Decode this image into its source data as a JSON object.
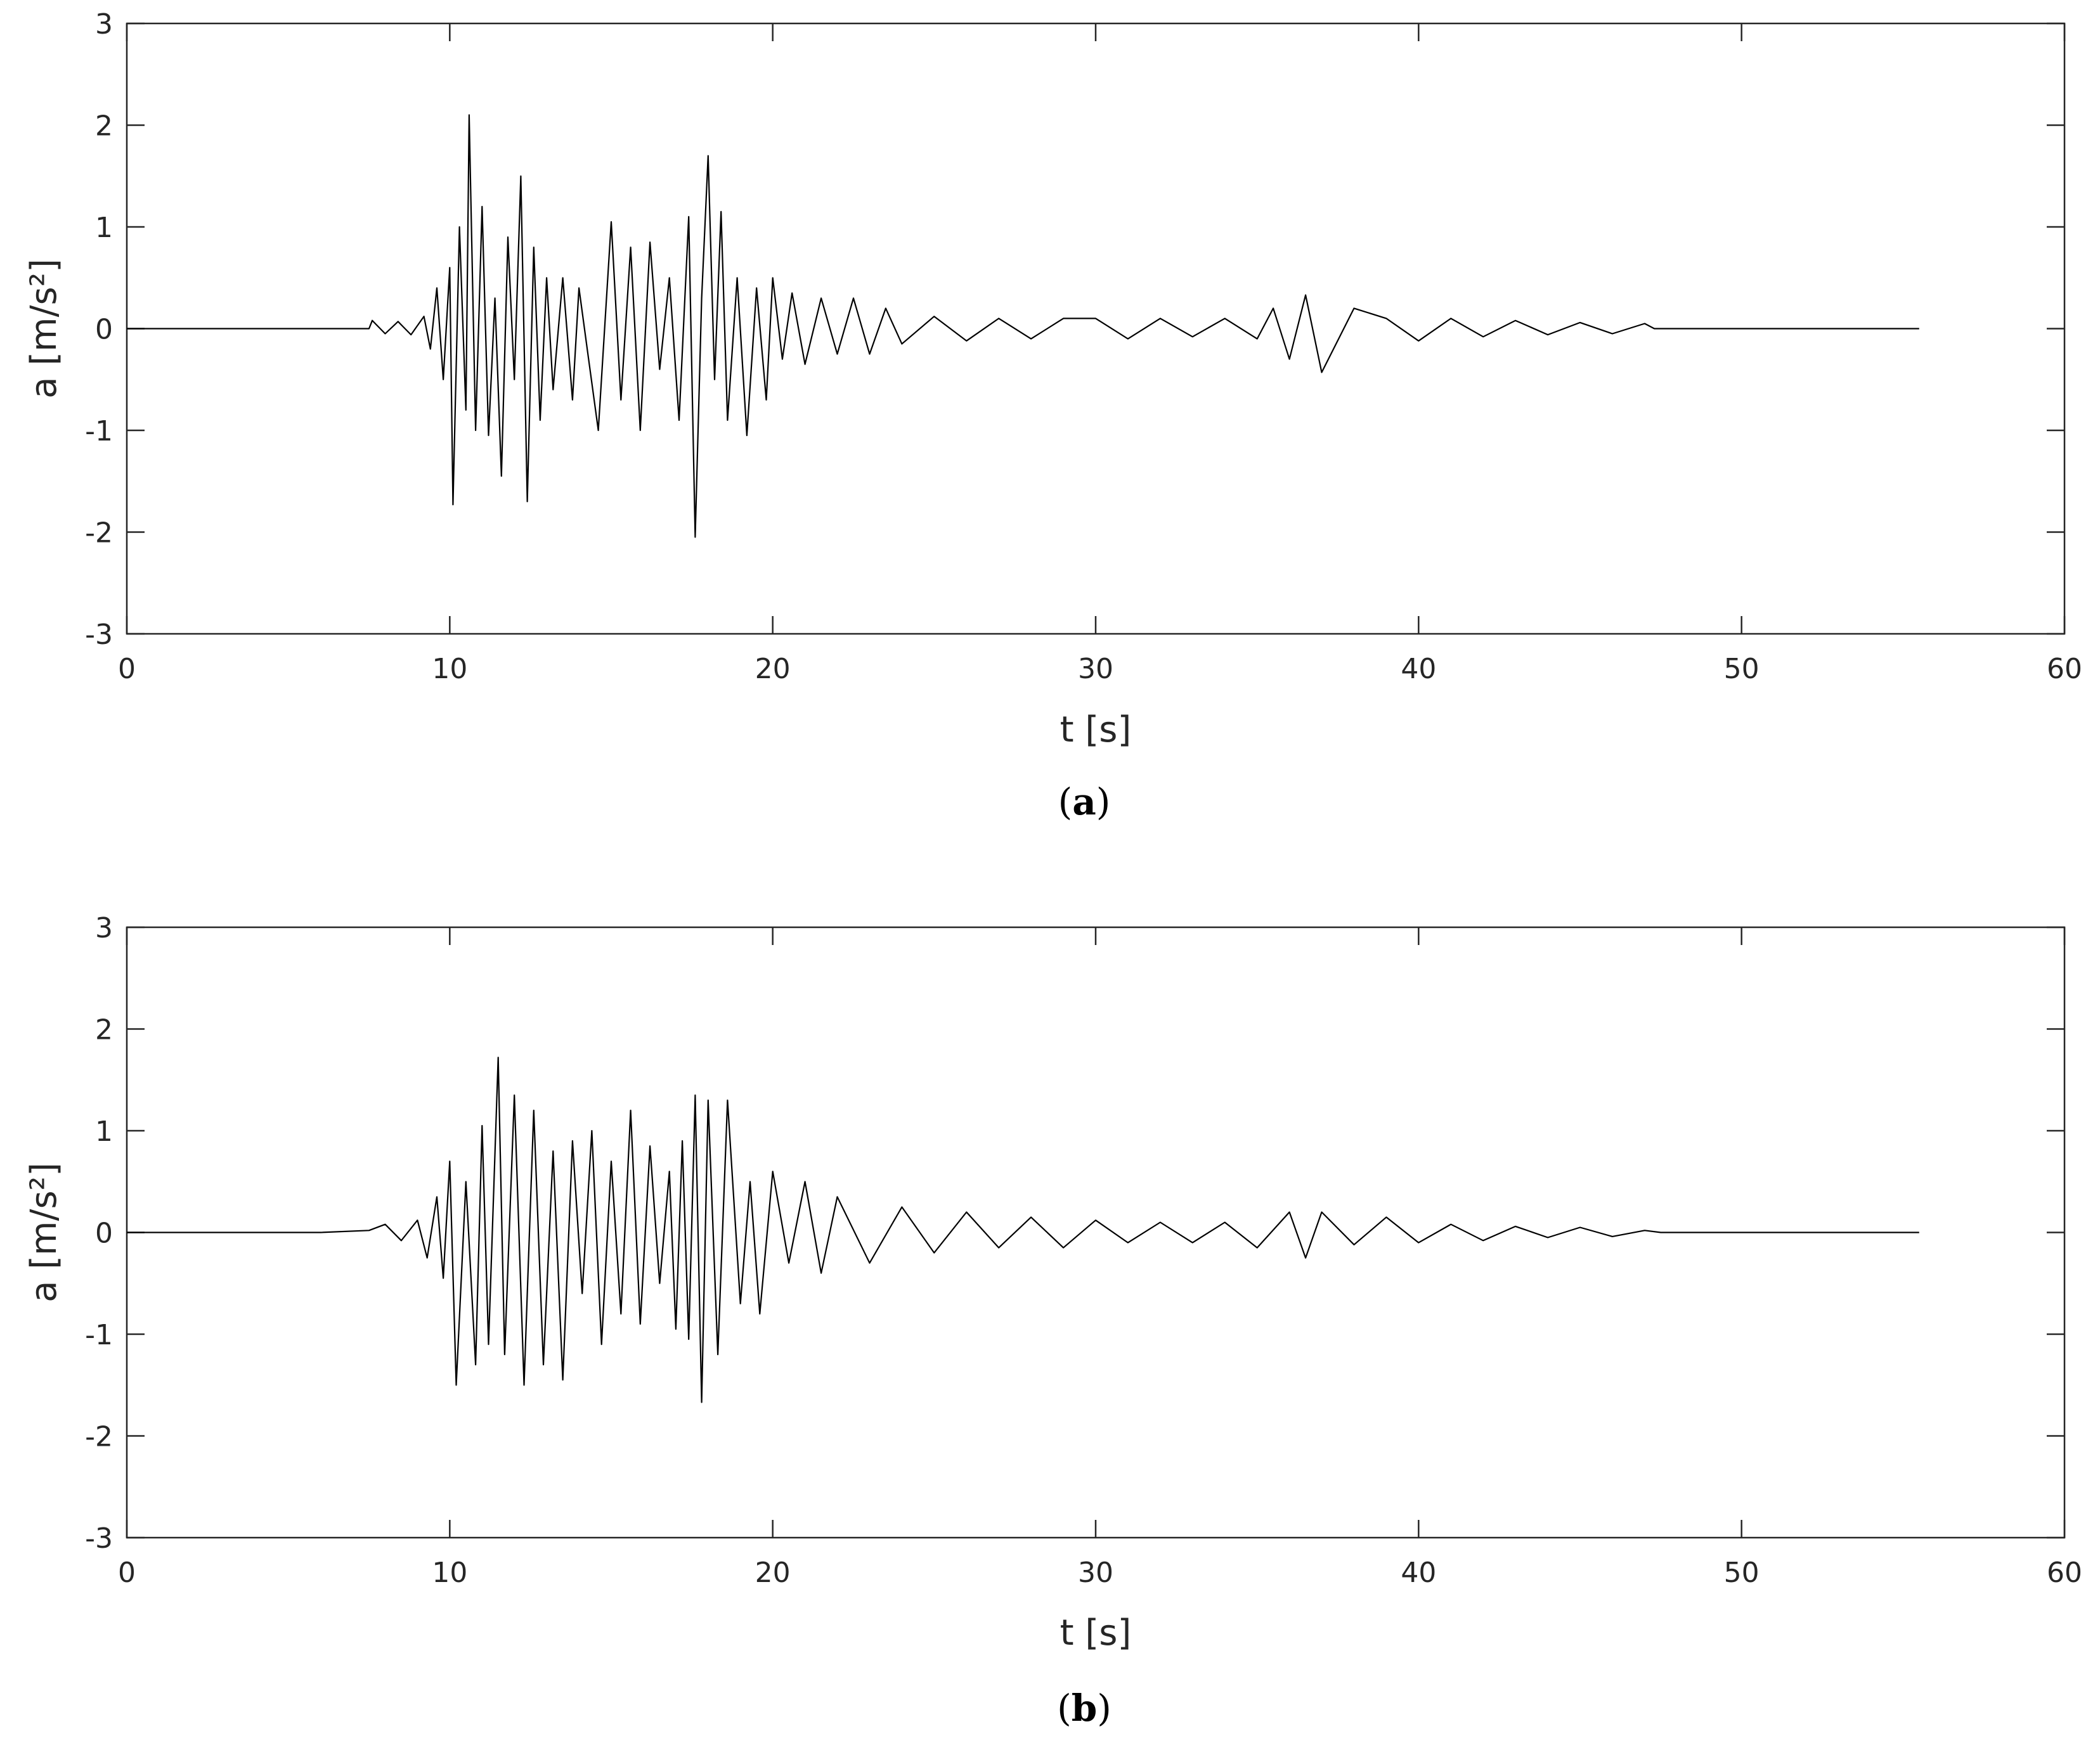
{
  "chart_data": [
    {
      "panel": "a",
      "type": "line",
      "caption": "(a)",
      "caption_letter": "a",
      "xlabel": "t [s]",
      "ylabel": "a [m/s²]",
      "xlim": [
        0,
        60
      ],
      "ylim": [
        -3,
        3
      ],
      "x_ticks": [
        0,
        10,
        20,
        30,
        40,
        50,
        60
      ],
      "y_ticks": [
        -3,
        -2,
        -1,
        0,
        1,
        2,
        3
      ],
      "grid": false,
      "series": [
        {
          "x": [
            0,
            2,
            4,
            6,
            7.5,
            7.6,
            8.0,
            8.4,
            8.8,
            9.2,
            9.4,
            9.6,
            9.8,
            10.0,
            10.1,
            10.3,
            10.5,
            10.6,
            10.8,
            11.0,
            11.2,
            11.4,
            11.6,
            11.8,
            12.0,
            12.2,
            12.4,
            12.6,
            12.8,
            13.0,
            13.2,
            13.5,
            13.8,
            14.0,
            14.3,
            14.6,
            15.0,
            15.3,
            15.6,
            15.9,
            16.2,
            16.5,
            16.8,
            17.1,
            17.4,
            17.6,
            17.8,
            18.0,
            18.2,
            18.4,
            18.6,
            18.9,
            19.2,
            19.5,
            19.8,
            20.0,
            20.3,
            20.6,
            21.0,
            21.5,
            22.0,
            22.5,
            23.0,
            23.5,
            24.0,
            25.0,
            26.0,
            27.0,
            28.0,
            29.0,
            30.0,
            31.0,
            32.0,
            33.0,
            34.0,
            35.0,
            35.5,
            36.0,
            36.5,
            37.0,
            38.0,
            39.0,
            40.0,
            41.0,
            42.0,
            43.0,
            44.0,
            45.0,
            46.0,
            47.0,
            47.3,
            48,
            50,
            52,
            55.5
          ],
          "y": [
            0,
            0,
            0,
            0,
            0,
            0.08,
            -0.05,
            0.07,
            -0.06,
            0.12,
            -0.2,
            0.4,
            -0.5,
            0.6,
            -1.73,
            1.0,
            -0.8,
            2.1,
            -1.0,
            1.2,
            -1.05,
            0.3,
            -1.45,
            0.9,
            -0.5,
            1.5,
            -1.7,
            0.8,
            -0.9,
            0.5,
            -0.6,
            0.5,
            -0.7,
            0.4,
            -0.3,
            -1.0,
            1.05,
            -0.7,
            0.8,
            -1.0,
            0.85,
            -0.4,
            0.5,
            -0.9,
            1.1,
            -2.05,
            0.3,
            1.7,
            -0.5,
            1.15,
            -0.9,
            0.5,
            -1.05,
            0.4,
            -0.7,
            0.5,
            -0.3,
            0.35,
            -0.35,
            0.3,
            -0.25,
            0.3,
            -0.25,
            0.2,
            -0.15,
            0.12,
            -0.12,
            0.1,
            -0.1,
            0.1,
            0.1,
            -0.1,
            0.1,
            -0.08,
            0.1,
            -0.1,
            0.2,
            -0.3,
            0.33,
            -0.43,
            0.2,
            0.1,
            -0.12,
            0.1,
            -0.08,
            0.08,
            -0.06,
            0.06,
            -0.05,
            0.05,
            0,
            0,
            0,
            0,
            0
          ]
        }
      ]
    },
    {
      "panel": "b",
      "type": "line",
      "caption": "(b)",
      "caption_letter": "b",
      "xlabel": "t [s]",
      "ylabel": "a [m/s²]",
      "xlim": [
        0,
        60
      ],
      "ylim": [
        -3,
        3
      ],
      "x_ticks": [
        0,
        10,
        20,
        30,
        40,
        50,
        60
      ],
      "y_ticks": [
        -3,
        -2,
        -1,
        0,
        1,
        2,
        3
      ],
      "grid": false,
      "series": [
        {
          "x": [
            0,
            2,
            4,
            6,
            7.5,
            8.0,
            8.5,
            9.0,
            9.3,
            9.6,
            9.8,
            10.0,
            10.2,
            10.5,
            10.8,
            11.0,
            11.2,
            11.5,
            11.7,
            12.0,
            12.3,
            12.6,
            12.9,
            13.2,
            13.5,
            13.8,
            14.1,
            14.4,
            14.7,
            15.0,
            15.3,
            15.6,
            15.9,
            16.2,
            16.5,
            16.8,
            17.0,
            17.2,
            17.4,
            17.6,
            17.8,
            18.0,
            18.3,
            18.6,
            19.0,
            19.3,
            19.6,
            20.0,
            20.5,
            21.0,
            21.5,
            22.0,
            23.0,
            24.0,
            25.0,
            26.0,
            27.0,
            28.0,
            29.0,
            30.0,
            31.0,
            32.0,
            33.0,
            34.0,
            35.0,
            36.0,
            36.5,
            37.0,
            38.0,
            39.0,
            40.0,
            41.0,
            42.0,
            43.0,
            44.0,
            45.0,
            46.0,
            47.0,
            47.5,
            50,
            52,
            55.5
          ],
          "y": [
            0,
            0,
            0,
            0,
            0.02,
            0.08,
            -0.08,
            0.12,
            -0.25,
            0.35,
            -0.45,
            0.7,
            -1.5,
            0.5,
            -1.3,
            1.05,
            -1.1,
            1.72,
            -1.2,
            1.35,
            -1.5,
            1.2,
            -1.3,
            0.8,
            -1.45,
            0.9,
            -0.6,
            1.0,
            -1.1,
            0.7,
            -0.8,
            1.2,
            -0.9,
            0.85,
            -0.5,
            0.6,
            -0.95,
            0.9,
            -1.05,
            1.35,
            -1.67,
            1.3,
            -1.2,
            1.3,
            -0.7,
            0.5,
            -0.8,
            0.6,
            -0.3,
            0.5,
            -0.4,
            0.35,
            -0.3,
            0.25,
            -0.2,
            0.2,
            -0.15,
            0.15,
            -0.15,
            0.12,
            -0.1,
            0.1,
            -0.1,
            0.1,
            -0.15,
            0.2,
            -0.25,
            0.2,
            -0.12,
            0.15,
            -0.1,
            0.08,
            -0.08,
            0.06,
            -0.05,
            0.05,
            -0.04,
            0.02,
            0,
            0,
            0,
            0
          ]
        }
      ]
    }
  ]
}
